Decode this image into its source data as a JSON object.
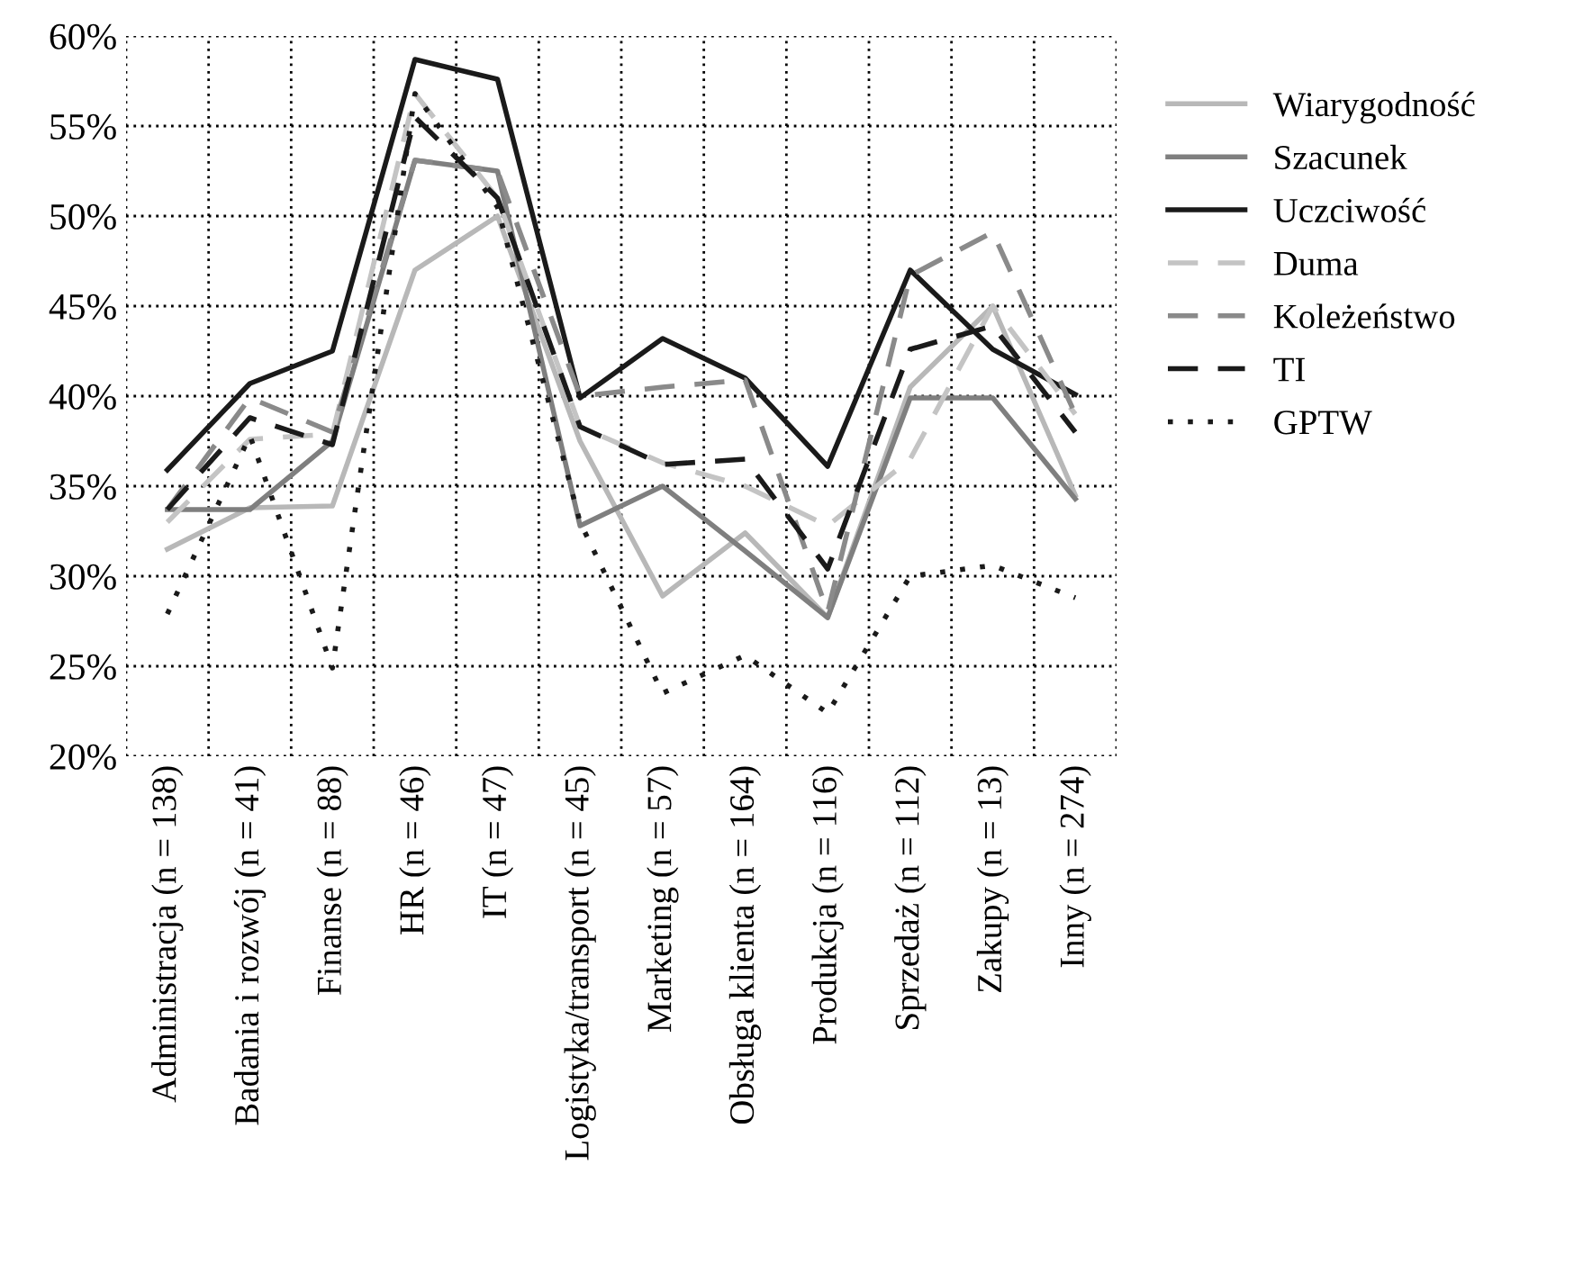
{
  "chart_data": {
    "type": "line",
    "categories": [
      "Administracja (n = 138)",
      "Badania i rozwój (n = 41)",
      "Finanse (n = 88)",
      "HR (n = 46)",
      "IT (n = 47)",
      "Logistyka/transport (n = 45)",
      "Marketing (n = 57)",
      "Obsługa klienta (n = 164)",
      "Produkcja (n = 116)",
      "Sprzedaż (n = 112)",
      "Zakupy (n = 13)",
      "Inny (n = 274)"
    ],
    "ylim": [
      20,
      60
    ],
    "yticks": [
      {
        "value": 20,
        "label": "20%"
      },
      {
        "value": 25,
        "label": "25%"
      },
      {
        "value": 30,
        "label": "30%"
      },
      {
        "value": 35,
        "label": "35%"
      },
      {
        "value": 40,
        "label": "40%"
      },
      {
        "value": 45,
        "label": "45%"
      },
      {
        "value": 50,
        "label": "50%"
      },
      {
        "value": 55,
        "label": "55%"
      },
      {
        "value": 60,
        "label": "60%"
      }
    ],
    "grid": true,
    "legend": "right",
    "marker": "none",
    "series": [
      {
        "name": "Wiarygodność",
        "color": "#b8b8b8",
        "line_style": "solid",
        "values": [
          31.5,
          33.8,
          33.9,
          47.0,
          50.0,
          37.5,
          28.9,
          32.4,
          27.7,
          40.5,
          45.0,
          34.5
        ]
      },
      {
        "name": "Szacunek",
        "color": "#7f7f7f",
        "line_style": "solid",
        "values": [
          33.7,
          33.7,
          37.5,
          53.1,
          52.5,
          32.8,
          35.0,
          31.4,
          27.7,
          39.9,
          39.9,
          34.3
        ]
      },
      {
        "name": "Uczciwość",
        "color": "#1a1a1a",
        "line_style": "solid",
        "values": [
          35.9,
          40.7,
          42.5,
          58.7,
          57.6,
          39.9,
          43.2,
          41.0,
          36.1,
          47.0,
          42.6,
          40.1
        ]
      },
      {
        "name": "Duma",
        "color": "#c4c4c4",
        "line_style": "dashed",
        "values": [
          33.0,
          37.6,
          37.9,
          56.8,
          51.0,
          38.3,
          36.3,
          35.0,
          32.8,
          36.5,
          45.0,
          39.0
        ]
      },
      {
        "name": "Koleżeństwo",
        "color": "#8a8a8a",
        "line_style": "dashed",
        "values": [
          33.7,
          39.9,
          38.0,
          53.1,
          52.5,
          40.0,
          40.5,
          40.9,
          28.0,
          46.7,
          49.1,
          39.0
        ]
      },
      {
        "name": "TI",
        "color": "#1a1a1a",
        "line_style": "dashed",
        "values": [
          33.7,
          38.8,
          37.3,
          55.5,
          51.0,
          38.3,
          36.2,
          36.5,
          30.4,
          42.6,
          43.9,
          38.0
        ]
      },
      {
        "name": "GPTW",
        "color": "#1a1a1a",
        "line_style": "dotted",
        "values": [
          27.9,
          37.8,
          24.9,
          56.8,
          50.5,
          33.0,
          23.5,
          25.6,
          22.4,
          30.0,
          30.6,
          28.8
        ]
      }
    ]
  }
}
